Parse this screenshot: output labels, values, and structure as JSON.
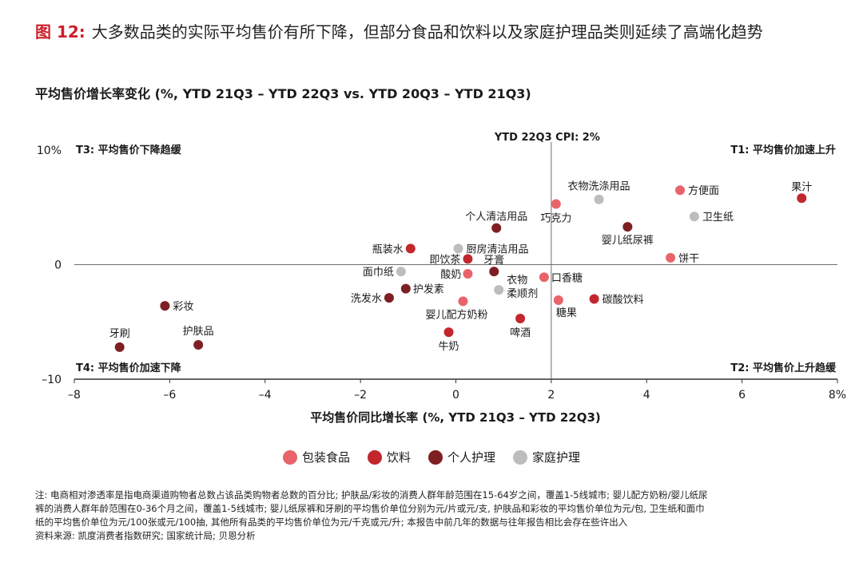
{
  "figure": {
    "label": "图 12:",
    "title": "大多数品类的实际平均售价有所下降，但部分食品和饮料以及家庭护理品类则延续了高端化趋势"
  },
  "chart_data": {
    "type": "scatter",
    "title": "平均售价增长率变化 (%, YTD 21Q3 – YTD 22Q3 vs. YTD 20Q3 – YTD 21Q3)",
    "xlabel": "平均售价同比增长率 (%, YTD 21Q3 – YTD 22Q3)",
    "ylabel": "",
    "xlim": [
      -8,
      8
    ],
    "ylim": [
      -10,
      10
    ],
    "x_ticks": [
      -8,
      -6,
      -4,
      -2,
      0,
      2,
      4,
      6,
      8
    ],
    "x_tick_labels": [
      "–8",
      "–6",
      "–4",
      "–2",
      "0",
      "2",
      "4",
      "6",
      "8%"
    ],
    "y_ticks": [
      10,
      0,
      -10
    ],
    "y_tick_labels": [
      "10%",
      "0",
      "–10"
    ],
    "cpi_line": {
      "x": 2,
      "label": "YTD 22Q3 CPI: 2%"
    },
    "quadrants": {
      "T1": "T1: 平均售价加速上升",
      "T2": "T2: 平均售价上升趋缓",
      "T3": "T3: 平均售价下降趋缓",
      "T4": "T4: 平均售价加速下降"
    },
    "series": [
      {
        "name": "包装食品",
        "color": "#e8646a",
        "points": [
          {
            "label": "方便面",
            "x": 4.7,
            "y": 6.5
          },
          {
            "label": "巧克力",
            "x": 2.1,
            "y": 5.3
          },
          {
            "label": "饼干",
            "x": 4.5,
            "y": 0.6
          },
          {
            "label": "口香糖",
            "x": 1.85,
            "y": -1.1
          },
          {
            "label": "酸奶",
            "x": 0.25,
            "y": -0.8
          },
          {
            "label": "糖果",
            "x": 2.15,
            "y": -3.1
          },
          {
            "label": "婴儿配方奶粉",
            "x": 0.15,
            "y": -3.2
          }
        ]
      },
      {
        "name": "饮料",
        "color": "#c1272d",
        "points": [
          {
            "label": "果汁",
            "x": 7.25,
            "y": 5.8
          },
          {
            "label": "瓶装水",
            "x": -0.95,
            "y": 1.4
          },
          {
            "label": "即饮茶",
            "x": 0.25,
            "y": 0.5
          },
          {
            "label": "碳酸饮料",
            "x": 2.9,
            "y": -3.0
          },
          {
            "label": "啤酒",
            "x": 1.35,
            "y": -4.7
          },
          {
            "label": "牛奶",
            "x": -0.15,
            "y": -5.9
          }
        ]
      },
      {
        "name": "个人护理",
        "color": "#7d1f23",
        "points": [
          {
            "label": "婴儿纸尿裤",
            "x": 3.6,
            "y": 3.3
          },
          {
            "label": "个人清洁用品",
            "x": 0.85,
            "y": 3.2
          },
          {
            "label": "牙膏",
            "x": 0.8,
            "y": -0.6
          },
          {
            "label": "护发素",
            "x": -1.05,
            "y": -2.1
          },
          {
            "label": "洗发水",
            "x": -1.4,
            "y": -2.9
          },
          {
            "label": "彩妆",
            "x": -6.1,
            "y": -3.6
          },
          {
            "label": "护肤品",
            "x": -5.4,
            "y": -7.0
          },
          {
            "label": "牙刷",
            "x": -7.05,
            "y": -7.2
          }
        ]
      },
      {
        "name": "家庭护理",
        "color": "#bdbdbd",
        "points": [
          {
            "label": "衣物洗涤用品",
            "x": 3.0,
            "y": 5.7
          },
          {
            "label": "卫生纸",
            "x": 5.0,
            "y": 4.2
          },
          {
            "label": "厨房清洁用品",
            "x": 0.05,
            "y": 1.4
          },
          {
            "label": "面巾纸",
            "x": -1.15,
            "y": -0.6
          },
          {
            "label": "衣物柔顺剂",
            "x": 0.9,
            "y": -2.2
          }
        ]
      }
    ]
  },
  "legend": [
    {
      "label": "包装食品",
      "color": "#e8646a"
    },
    {
      "label": "饮料",
      "color": "#c1272d"
    },
    {
      "label": "个人护理",
      "color": "#7d1f23"
    },
    {
      "label": "家庭护理",
      "color": "#bdbdbd"
    }
  ],
  "notes": {
    "line1": "注: 电商相对渗透率是指电商渠道购物者总数占该品类购物者总数的百分比; 护肤品/彩妆的消费人群年龄范围在15-64岁之间，覆盖1-5线城市; 婴儿配方奶粉/婴儿纸尿",
    "line2": "裤的消费人群年龄范围在0-36个月之间，覆盖1-5线城市; 婴儿纸尿裤和牙刷的平均售价单位分别为元/片或元/支, 护肤品和彩妆的平均售价单位为元/包, 卫生纸和面巾",
    "line3": "纸的平均售价单位为元/100张或元/100抽, 其他所有品类的平均售价单位为元/千克或元/升; 本报告中前几年的数据与往年报告相比会存在些许出入",
    "source": "资料来源: 凯度消费者指数研究; 国家统计局; 贝恩分析"
  }
}
